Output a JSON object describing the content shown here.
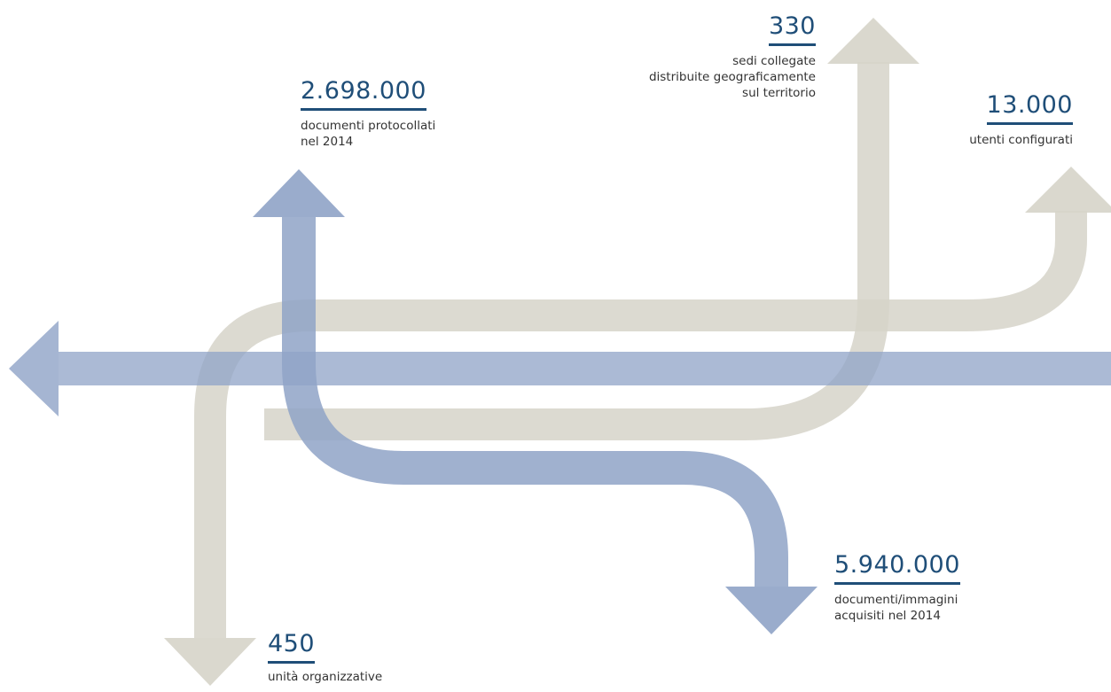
{
  "colors": {
    "blue_arrow": "#8fa3c7",
    "grey_arrow": "#d6d4c9",
    "number_text": "#1f4e78"
  },
  "stats": {
    "documents_registered": {
      "value": "2.698.000",
      "desc_line1": "documenti protocollati",
      "desc_line2": "nel 2014"
    },
    "linked_sites": {
      "value": "330",
      "desc_line1": "sedi collegate",
      "desc_line2": "distribuite geograficamente",
      "desc_line3": "sul territorio"
    },
    "configured_users": {
      "value": "13.000",
      "desc_line1": "utenti configurati"
    },
    "documents_acquired": {
      "value": "5.940.000",
      "desc_line1": "documenti/immagini",
      "desc_line2": "acquisiti nel 2014"
    },
    "organizational_units": {
      "value": "450",
      "desc_line1": "unità organizzative"
    }
  }
}
